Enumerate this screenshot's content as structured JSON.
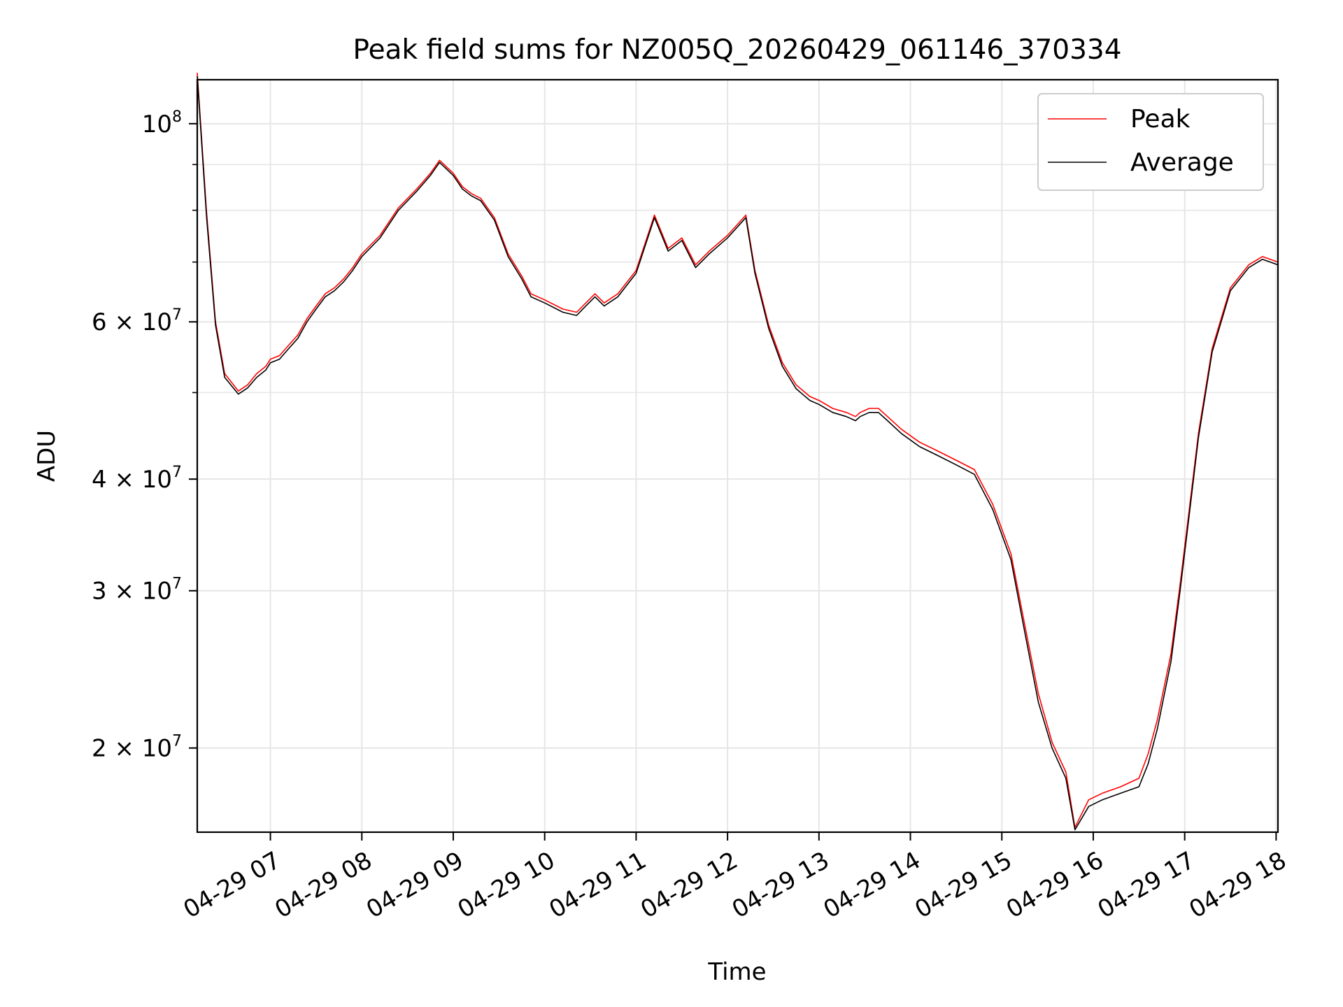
{
  "chart_data": {
    "type": "line",
    "title": "Peak field sums for NZ005Q_20260429_061146_370334",
    "xlabel": "Time",
    "ylabel": "ADU",
    "yscale": "log",
    "grid": true,
    "legend_position": "upper-right",
    "xlim_hours": [
      6.2,
      18.02
    ],
    "ylim": [
      16100000,
      112000000
    ],
    "x_ticks": [
      {
        "hour": 7,
        "label": "04-29 07"
      },
      {
        "hour": 8,
        "label": "04-29 08"
      },
      {
        "hour": 9,
        "label": "04-29 09"
      },
      {
        "hour": 10,
        "label": "04-29 10"
      },
      {
        "hour": 11,
        "label": "04-29 11"
      },
      {
        "hour": 12,
        "label": "04-29 12"
      },
      {
        "hour": 13,
        "label": "04-29 13"
      },
      {
        "hour": 14,
        "label": "04-29 14"
      },
      {
        "hour": 15,
        "label": "04-29 15"
      },
      {
        "hour": 16,
        "label": "04-29 16"
      },
      {
        "hour": 17,
        "label": "04-29 17"
      },
      {
        "hour": 18,
        "label": "04-29 18"
      }
    ],
    "y_ticks": [
      {
        "value": 100000000,
        "base": "10",
        "exp": "8"
      },
      {
        "value": 60000000,
        "base": "6 × 10",
        "exp": "7"
      },
      {
        "value": 40000000,
        "base": "4 × 10",
        "exp": "7"
      },
      {
        "value": 30000000,
        "base": "3 × 10",
        "exp": "7"
      },
      {
        "value": 20000000,
        "base": "2 × 10",
        "exp": "7"
      }
    ],
    "y_minor_ticks": [
      20000000,
      30000000,
      40000000,
      50000000,
      60000000,
      70000000,
      80000000,
      90000000
    ],
    "series": [
      {
        "name": "Peak",
        "color": "#ff0000",
        "x_hours": [
          6.2,
          6.3,
          6.4,
          6.5,
          6.65,
          6.75,
          6.85,
          6.95,
          7.0,
          7.1,
          7.2,
          7.3,
          7.4,
          7.5,
          7.6,
          7.7,
          7.8,
          7.9,
          8.0,
          8.2,
          8.4,
          8.6,
          8.75,
          8.85,
          9.0,
          9.1,
          9.2,
          9.3,
          9.45,
          9.6,
          9.75,
          9.85,
          10.0,
          10.2,
          10.35,
          10.45,
          10.55,
          10.65,
          10.8,
          11.0,
          11.2,
          11.35,
          11.5,
          11.65,
          11.8,
          12.0,
          12.2,
          12.3,
          12.45,
          12.6,
          12.75,
          12.9,
          13.0,
          13.15,
          13.3,
          13.4,
          13.45,
          13.55,
          13.65,
          13.75,
          13.9,
          14.1,
          14.3,
          14.5,
          14.7,
          14.9,
          15.1,
          15.25,
          15.4,
          15.55,
          15.7,
          15.8,
          15.95,
          16.1,
          16.3,
          16.5,
          16.6,
          16.7,
          16.85,
          16.95,
          17.05,
          17.15,
          17.3,
          17.5,
          17.7,
          17.85,
          18.02
        ],
        "values": [
          114000000,
          80000000,
          60000000,
          52500000,
          50200000,
          51000000,
          52500000,
          53500000,
          54500000,
          55000000,
          56500000,
          58000000,
          60500000,
          62500000,
          64500000,
          65500000,
          67000000,
          69000000,
          71500000,
          75000000,
          80500000,
          84500000,
          88000000,
          91000000,
          88000000,
          85000000,
          83500000,
          82500000,
          78500000,
          71500000,
          67500000,
          64500000,
          63500000,
          62000000,
          61500000,
          63000000,
          64500000,
          63000000,
          64500000,
          68500000,
          79000000,
          72500000,
          74500000,
          69500000,
          72000000,
          75000000,
          79000000,
          68500000,
          59500000,
          54000000,
          51000000,
          49500000,
          49000000,
          48000000,
          47500000,
          47000000,
          47500000,
          48000000,
          48000000,
          47000000,
          45500000,
          44000000,
          43000000,
          42000000,
          41000000,
          37500000,
          33000000,
          27500000,
          23000000,
          20300000,
          18800000,
          16300000,
          17500000,
          17800000,
          18100000,
          18500000,
          19700000,
          21500000,
          25500000,
          30500000,
          37000000,
          45000000,
          56000000,
          65500000,
          69500000,
          71000000,
          70000000
        ]
      },
      {
        "name": "Average",
        "color": "#000000",
        "x_hours": [
          6.2,
          6.3,
          6.4,
          6.5,
          6.65,
          6.75,
          6.85,
          6.95,
          7.0,
          7.1,
          7.2,
          7.3,
          7.4,
          7.5,
          7.6,
          7.7,
          7.8,
          7.9,
          8.0,
          8.2,
          8.4,
          8.6,
          8.75,
          8.85,
          9.0,
          9.1,
          9.2,
          9.3,
          9.45,
          9.6,
          9.75,
          9.85,
          10.0,
          10.2,
          10.35,
          10.45,
          10.55,
          10.65,
          10.8,
          11.0,
          11.2,
          11.35,
          11.5,
          11.65,
          11.8,
          12.0,
          12.2,
          12.3,
          12.45,
          12.6,
          12.75,
          12.9,
          13.0,
          13.15,
          13.3,
          13.4,
          13.45,
          13.55,
          13.65,
          13.75,
          13.9,
          14.1,
          14.3,
          14.5,
          14.7,
          14.9,
          15.1,
          15.25,
          15.4,
          15.55,
          15.7,
          15.8,
          15.95,
          16.1,
          16.3,
          16.5,
          16.6,
          16.7,
          16.85,
          16.95,
          17.05,
          17.15,
          17.3,
          17.5,
          17.7,
          17.85,
          18.02
        ],
        "values": [
          113000000,
          79000000,
          59500000,
          52000000,
          49800000,
          50600000,
          52000000,
          53000000,
          54000000,
          54500000,
          56000000,
          57500000,
          60000000,
          62000000,
          64000000,
          65000000,
          66500000,
          68500000,
          71000000,
          74500000,
          80000000,
          84000000,
          87500000,
          90500000,
          87500000,
          84500000,
          83000000,
          82000000,
          78000000,
          71000000,
          67000000,
          64000000,
          63000000,
          61500000,
          61000000,
          62500000,
          64000000,
          62500000,
          64000000,
          68000000,
          78500000,
          72000000,
          74000000,
          69000000,
          71500000,
          74500000,
          78500000,
          68000000,
          59000000,
          53500000,
          50500000,
          49000000,
          48500000,
          47500000,
          47000000,
          46500000,
          47000000,
          47500000,
          47500000,
          46500000,
          45000000,
          43500000,
          42500000,
          41500000,
          40500000,
          37000000,
          32500000,
          27000000,
          22500000,
          20000000,
          18500000,
          16200000,
          17200000,
          17500000,
          17800000,
          18100000,
          19200000,
          21000000,
          25000000,
          30000000,
          36500000,
          44500000,
          55500000,
          65000000,
          69000000,
          70500000,
          69500000
        ]
      }
    ]
  }
}
